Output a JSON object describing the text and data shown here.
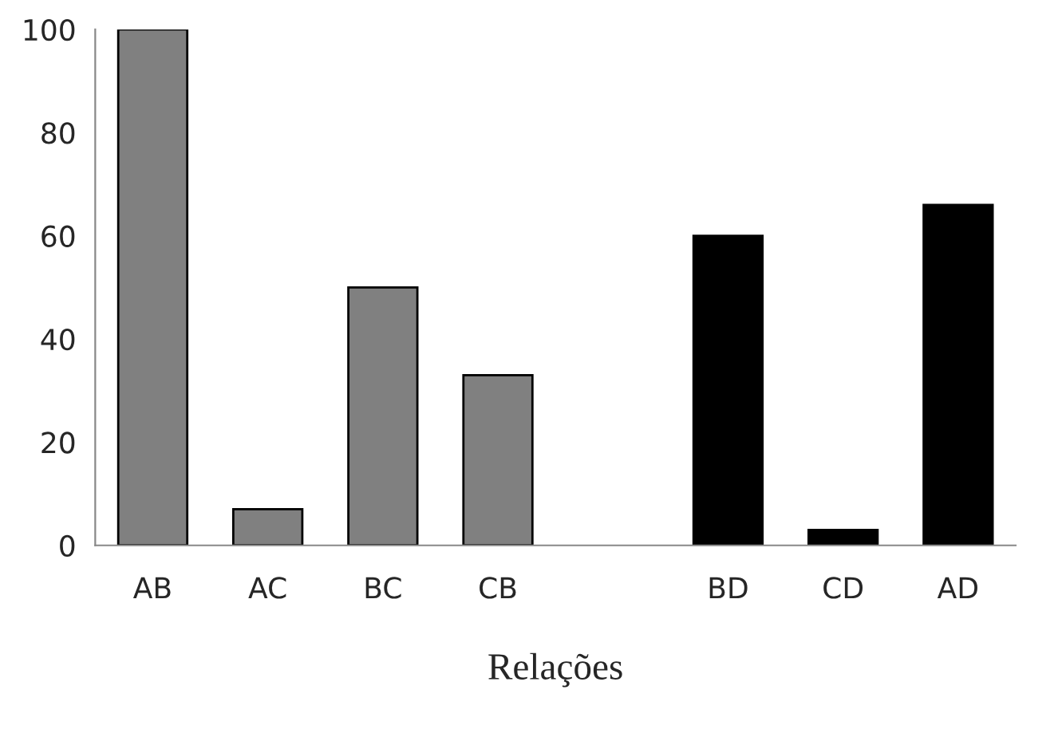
{
  "chart_data": {
    "type": "bar",
    "xlabel": "Relações",
    "categories": [
      "AB",
      "AC",
      "BC",
      "CB",
      null,
      "BD",
      "CD",
      "AD"
    ],
    "values": [
      100,
      7,
      50,
      33,
      null,
      60,
      3,
      66
    ],
    "colors": [
      "#808080",
      "#808080",
      "#808080",
      "#808080",
      "#808080",
      "#000000",
      "#000000",
      "#000000"
    ],
    "ylim": [
      0,
      100
    ],
    "yticks": [
      0,
      20,
      40,
      60,
      80,
      100
    ],
    "grid": false,
    "legend": false
  }
}
